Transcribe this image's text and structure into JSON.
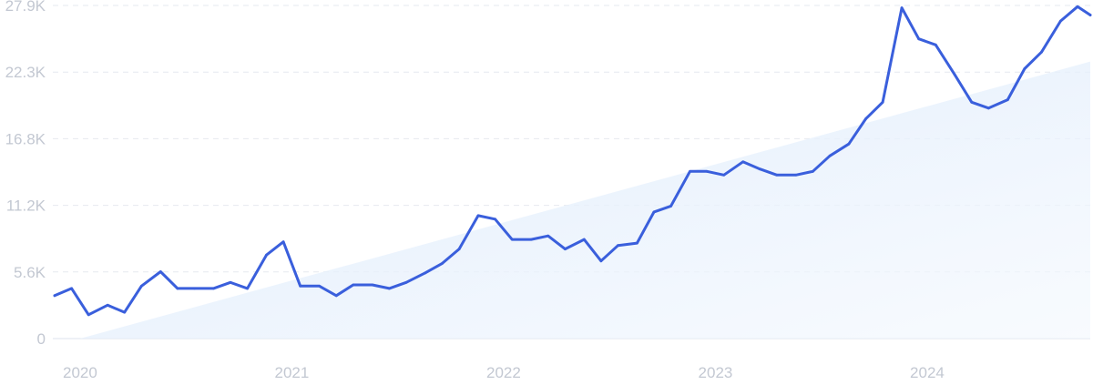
{
  "chart_data": {
    "type": "line",
    "title": "",
    "xlabel": "",
    "ylabel": "",
    "x_ticks": [
      "2020",
      "2021",
      "2022",
      "2023",
      "2024"
    ],
    "y_ticks": [
      "0",
      "5.6K",
      "11.2K",
      "16.8K",
      "22.3K",
      "27.9K"
    ],
    "ylim": [
      0,
      27900
    ],
    "xlim": [
      2019.88,
      2024.77
    ],
    "grid": true,
    "line_color": "#3a5fdc",
    "trend_fill_color": "#dbe9fb",
    "series": [
      {
        "x": [
          2019.88,
          2019.96,
          2020.04,
          2020.13,
          2020.21,
          2020.29,
          2020.38,
          2020.46,
          2020.54,
          2020.63,
          2020.71,
          2020.79,
          2020.88,
          2020.96,
          2021.04,
          2021.13,
          2021.21,
          2021.29,
          2021.38,
          2021.46,
          2021.54,
          2021.63,
          2021.71,
          2021.79,
          2021.88,
          2021.96,
          2022.04,
          2022.13,
          2022.21,
          2022.29,
          2022.38,
          2022.46,
          2022.54,
          2022.63,
          2022.71,
          2022.79,
          2022.88,
          2022.96,
          2023.04,
          2023.13,
          2023.21,
          2023.29,
          2023.38,
          2023.46,
          2023.54,
          2023.63,
          2023.71,
          2023.79,
          2023.88,
          2023.96,
          2024.04,
          2024.13,
          2024.21,
          2024.29,
          2024.38,
          2024.46,
          2024.54,
          2024.63,
          2024.71,
          2024.77
        ],
        "values": [
          3600,
          4200,
          2000,
          2800,
          2200,
          4400,
          5600,
          4200,
          4200,
          4200,
          4700,
          4200,
          7000,
          8100,
          4400,
          4400,
          3600,
          4500,
          4500,
          4200,
          4700,
          5500,
          6300,
          7500,
          10300,
          10000,
          8300,
          8300,
          8600,
          7500,
          8300,
          6500,
          7800,
          8000,
          10600,
          11100,
          14000,
          14000,
          13700,
          14800,
          14200,
          13700,
          13700,
          14000,
          15300,
          16300,
          18400,
          19800,
          27700,
          25100,
          24600,
          22100,
          19800,
          19300,
          20000,
          22600,
          24000,
          26600,
          27800,
          27100
        ]
      }
    ],
    "trend": {
      "x": [
        2020.0,
        2024.77
      ],
      "values": [
        0,
        23200
      ]
    }
  }
}
